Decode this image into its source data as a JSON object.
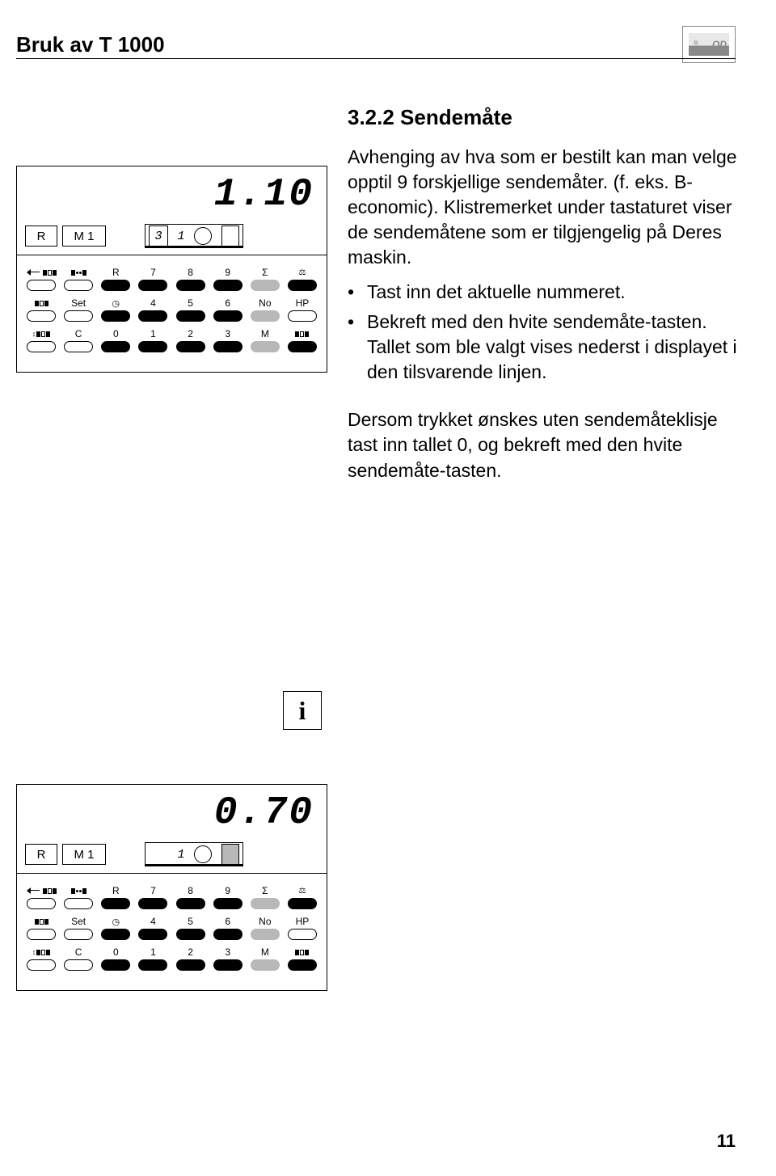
{
  "header": {
    "title": "Bruk av  T 1000",
    "logo_text": "OD"
  },
  "section": {
    "number": "3.2.2 Sendemåte",
    "intro": "Avhenging av hva som er bestilt kan man velge opptil 9 forskjellige sendemåter. (f. eks. B-economic). Klistremerket under tastaturet viser de sendemåtene som er tilgjengelig på Deres maskin.",
    "bullets": [
      "Tast inn det aktuelle nummeret.",
      "Bekreft med den hvite sendemåte-tasten. Tallet som ble valgt vises nederst i displayet i den tilsvarende linjen."
    ],
    "note": "Dersom trykket ønskes uten sendemåteklisje tast inn tallet 0, og bekreft med den hvite sendemåte-tasten."
  },
  "info_icon": "i",
  "devices": {
    "top": {
      "lcd_value": "1.10",
      "lcd_r": "R",
      "lcd_m": "M 1",
      "lcd_n3": "3",
      "lcd_n1": "1"
    },
    "bottom": {
      "lcd_value": "0.70",
      "lcd_r": "R",
      "lcd_m": "M 1",
      "lcd_n3": "",
      "lcd_n1": "1"
    }
  },
  "keypad": {
    "rows": [
      [
        {
          "label": "",
          "iconType": "arrow-recta",
          "btn": "white"
        },
        {
          "label": "",
          "iconType": "rectb",
          "btn": "white"
        },
        {
          "label": "R",
          "btn": "black"
        },
        {
          "label": "7",
          "btn": "black"
        },
        {
          "label": "8",
          "btn": "black"
        },
        {
          "label": "9",
          "btn": "black"
        },
        {
          "label": "Σ",
          "btn": "gray"
        },
        {
          "label": "",
          "iconType": "scale",
          "btn": "black"
        }
      ],
      [
        {
          "label": "",
          "iconType": "rectc",
          "btn": "white"
        },
        {
          "label": "Set",
          "btn": "white"
        },
        {
          "label": "",
          "iconType": "clock",
          "btn": "black"
        },
        {
          "label": "4",
          "btn": "black"
        },
        {
          "label": "5",
          "btn": "black"
        },
        {
          "label": "6",
          "btn": "black"
        },
        {
          "label": "No",
          "btn": "gray"
        },
        {
          "label": "HP",
          "btn": "white"
        }
      ],
      [
        {
          "label": "",
          "iconType": "rectd",
          "btn": "white"
        },
        {
          "label": "C",
          "btn": "white"
        },
        {
          "label": "0",
          "btn": "black"
        },
        {
          "label": "1",
          "btn": "black"
        },
        {
          "label": "2",
          "btn": "black"
        },
        {
          "label": "3",
          "btn": "black"
        },
        {
          "label": "M",
          "btn": "gray"
        },
        {
          "label": "",
          "iconType": "recte",
          "btn": "black"
        }
      ]
    ]
  },
  "page_number": "11",
  "colors": {
    "black": "#000000",
    "gray": "#b8b8b8",
    "white": "#ffffff"
  }
}
